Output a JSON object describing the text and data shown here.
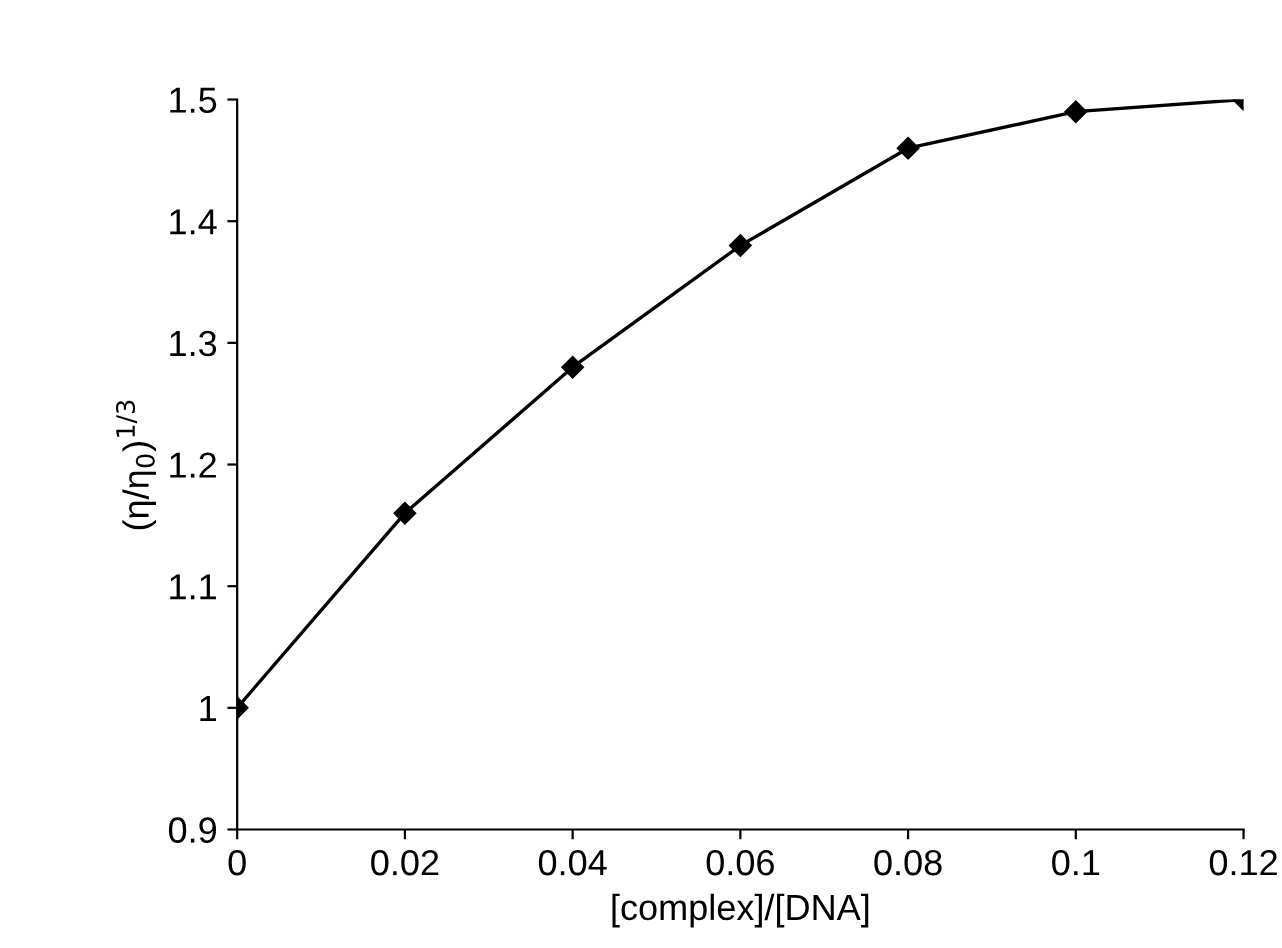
{
  "chart_data": {
    "type": "line",
    "xlabel": "[complex]/[DNA]",
    "ylabel": "(η/η$_{0}$)$^{1/3}$",
    "x": [
      0,
      0.02,
      0.04,
      0.06,
      0.08,
      0.1,
      0.12
    ],
    "series": [
      {
        "color": "#000000",
        "values": [
          1.0,
          1.16,
          1.28,
          1.38,
          1.46,
          1.49,
          1.5
        ]
      }
    ],
    "xlim": [
      0,
      0.12
    ],
    "xticks": [
      0,
      0.02,
      0.04,
      0.06,
      0.08,
      0.1,
      0.12
    ],
    "ylim": [
      0.9,
      1.5
    ],
    "yticks": [
      0.9,
      1,
      1.1,
      1.2,
      1.3,
      1.4,
      1.5
    ],
    "marker": "diamond",
    "line_style": "solid",
    "grid": false,
    "legend": false
  }
}
